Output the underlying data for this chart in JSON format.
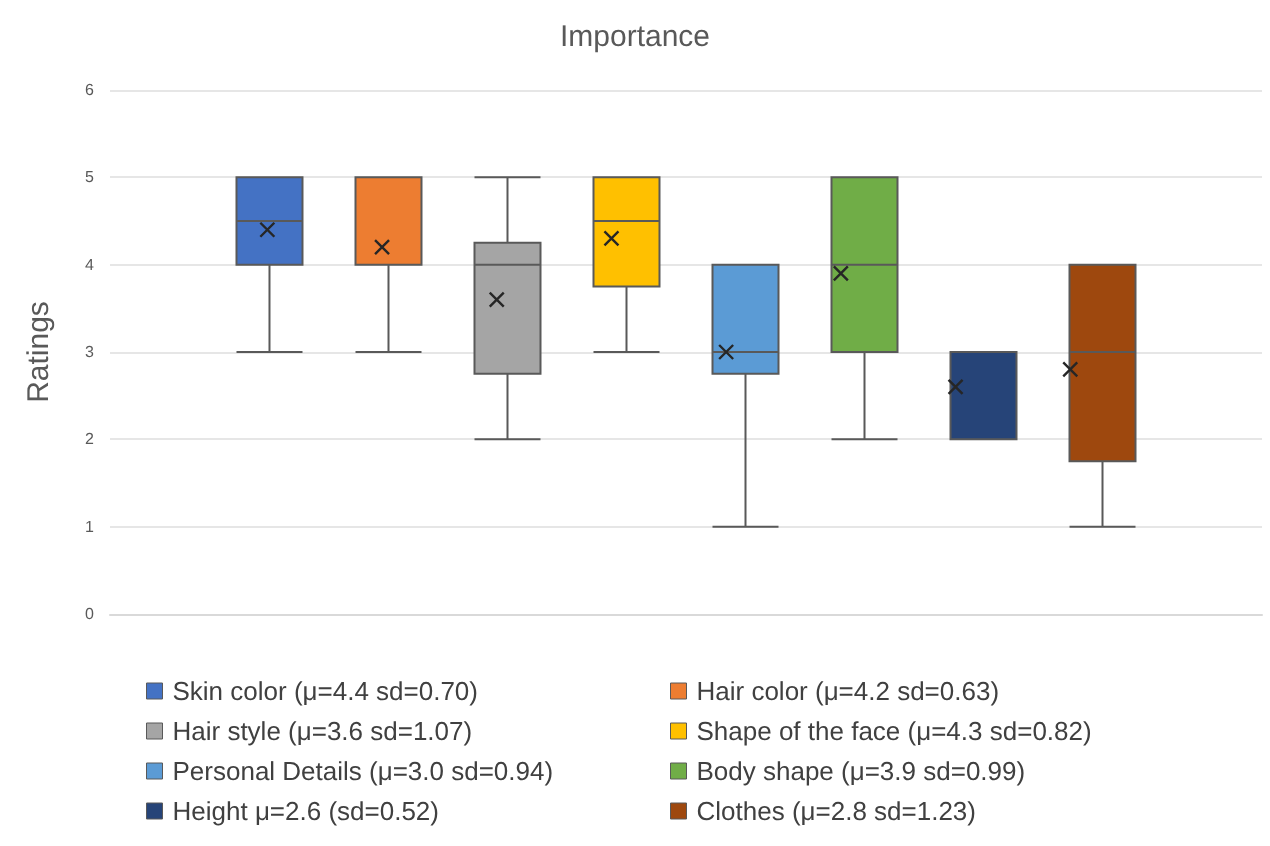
{
  "chart_data": {
    "type": "box",
    "title": "Importance",
    "ylabel": "Ratings",
    "categories": [
      null
    ],
    "series": [
      {
        "name": "Skin color (μ=4.4 sd=0.70)",
        "color": "#4472c4",
        "boxes": [
          {
            "low": 3,
            "q1": 4,
            "median": 4.5,
            "q3": 5,
            "high": 5,
            "mean": 4.4
          }
        ]
      },
      {
        "name": "Hair color (μ=4.2 sd=0.63)",
        "color": "#ed7d31",
        "boxes": [
          {
            "low": 3,
            "q1": 4,
            "median": 4,
            "q3": 5,
            "high": 5,
            "mean": 4.2
          }
        ]
      },
      {
        "name": "Hair style (μ=3.6 sd=1.07)",
        "color": "#a5a5a5",
        "boxes": [
          {
            "low": 2,
            "q1": 2.75,
            "median": 4,
            "q3": 4.25,
            "high": 5,
            "mean": 3.6
          }
        ]
      },
      {
        "name": "Shape of the face (μ=4.3 sd=0.82)",
        "color": "#ffc000",
        "boxes": [
          {
            "low": 3,
            "q1": 3.75,
            "median": 4.5,
            "q3": 5,
            "high": 5,
            "mean": 4.3
          }
        ]
      },
      {
        "name": "Personal Details (μ=3.0 sd=0.94)",
        "color": "#5b9bd5",
        "boxes": [
          {
            "low": 1,
            "q1": 2.75,
            "median": 3,
            "q3": 4,
            "high": 4,
            "mean": 3.0
          }
        ]
      },
      {
        "name": "Body shape (μ=3.9 sd=0.99)",
        "color": "#70ad47",
        "boxes": [
          {
            "low": 2,
            "q1": 3,
            "median": 4,
            "q3": 5,
            "high": 5,
            "mean": 3.9
          }
        ]
      },
      {
        "name": "Height μ=2.6 (sd=0.52)",
        "color": "#264478",
        "boxes": [
          {
            "low": 2,
            "q1": 2,
            "median": 3,
            "q3": 3,
            "high": 3,
            "mean": 2.6
          }
        ]
      },
      {
        "name": "Clothes (μ=2.8 sd=1.23)",
        "color": "#9e480e",
        "boxes": [
          {
            "low": 1,
            "q1": 1.75,
            "median": 3,
            "q3": 4,
            "high": 4,
            "mean": 2.8
          }
        ]
      }
    ],
    "ylim": [
      0,
      6
    ],
    "yticks": [
      0,
      1,
      2,
      3,
      4,
      5,
      6
    ],
    "grid": "y",
    "legend": "bottom"
  }
}
